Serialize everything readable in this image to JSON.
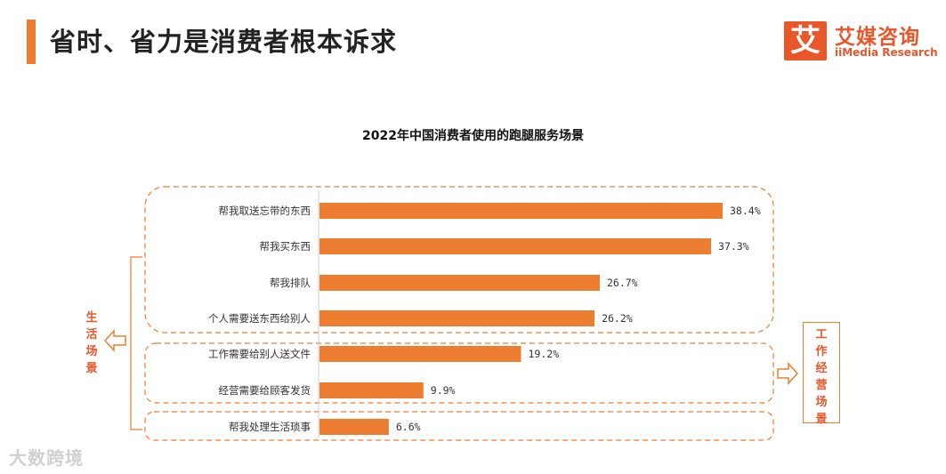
{
  "header": {
    "title": "省时、省力是消费者根本诉求",
    "accent_color": "#ED7D31"
  },
  "logo": {
    "mark": "艾",
    "name_cn": "艾媒咨询",
    "name_en": "iiMedia Research"
  },
  "chart_data": {
    "type": "bar",
    "orientation": "horizontal",
    "title": "2022年中国消费者使用的跑腿服务场景",
    "categories": [
      "帮我取送忘带的东西",
      "帮我买东西",
      "帮我排队",
      "个人需要送东西给别人",
      "工作需要给别人送文件",
      "经营需要给顾客发货",
      "帮我处理生活琐事"
    ],
    "values": [
      38.4,
      37.3,
      26.7,
      26.2,
      19.2,
      9.9,
      6.6
    ],
    "value_labels": [
      "38.4%",
      "37.3%",
      "26.7%",
      "26.2%",
      "19.2%",
      "9.9%",
      "6.6%"
    ],
    "unit": "%",
    "bar_color": "#ED7D31",
    "xlim": [
      0,
      38.4
    ],
    "groups": [
      {
        "name": "生活场景",
        "items": [
          0,
          1,
          2,
          3,
          6
        ]
      },
      {
        "name": "工作经营场景",
        "items": [
          4,
          5
        ]
      }
    ],
    "group_labels": {
      "life": "生活场景",
      "work": "工作经营场景"
    }
  },
  "watermark": "大数跨境"
}
